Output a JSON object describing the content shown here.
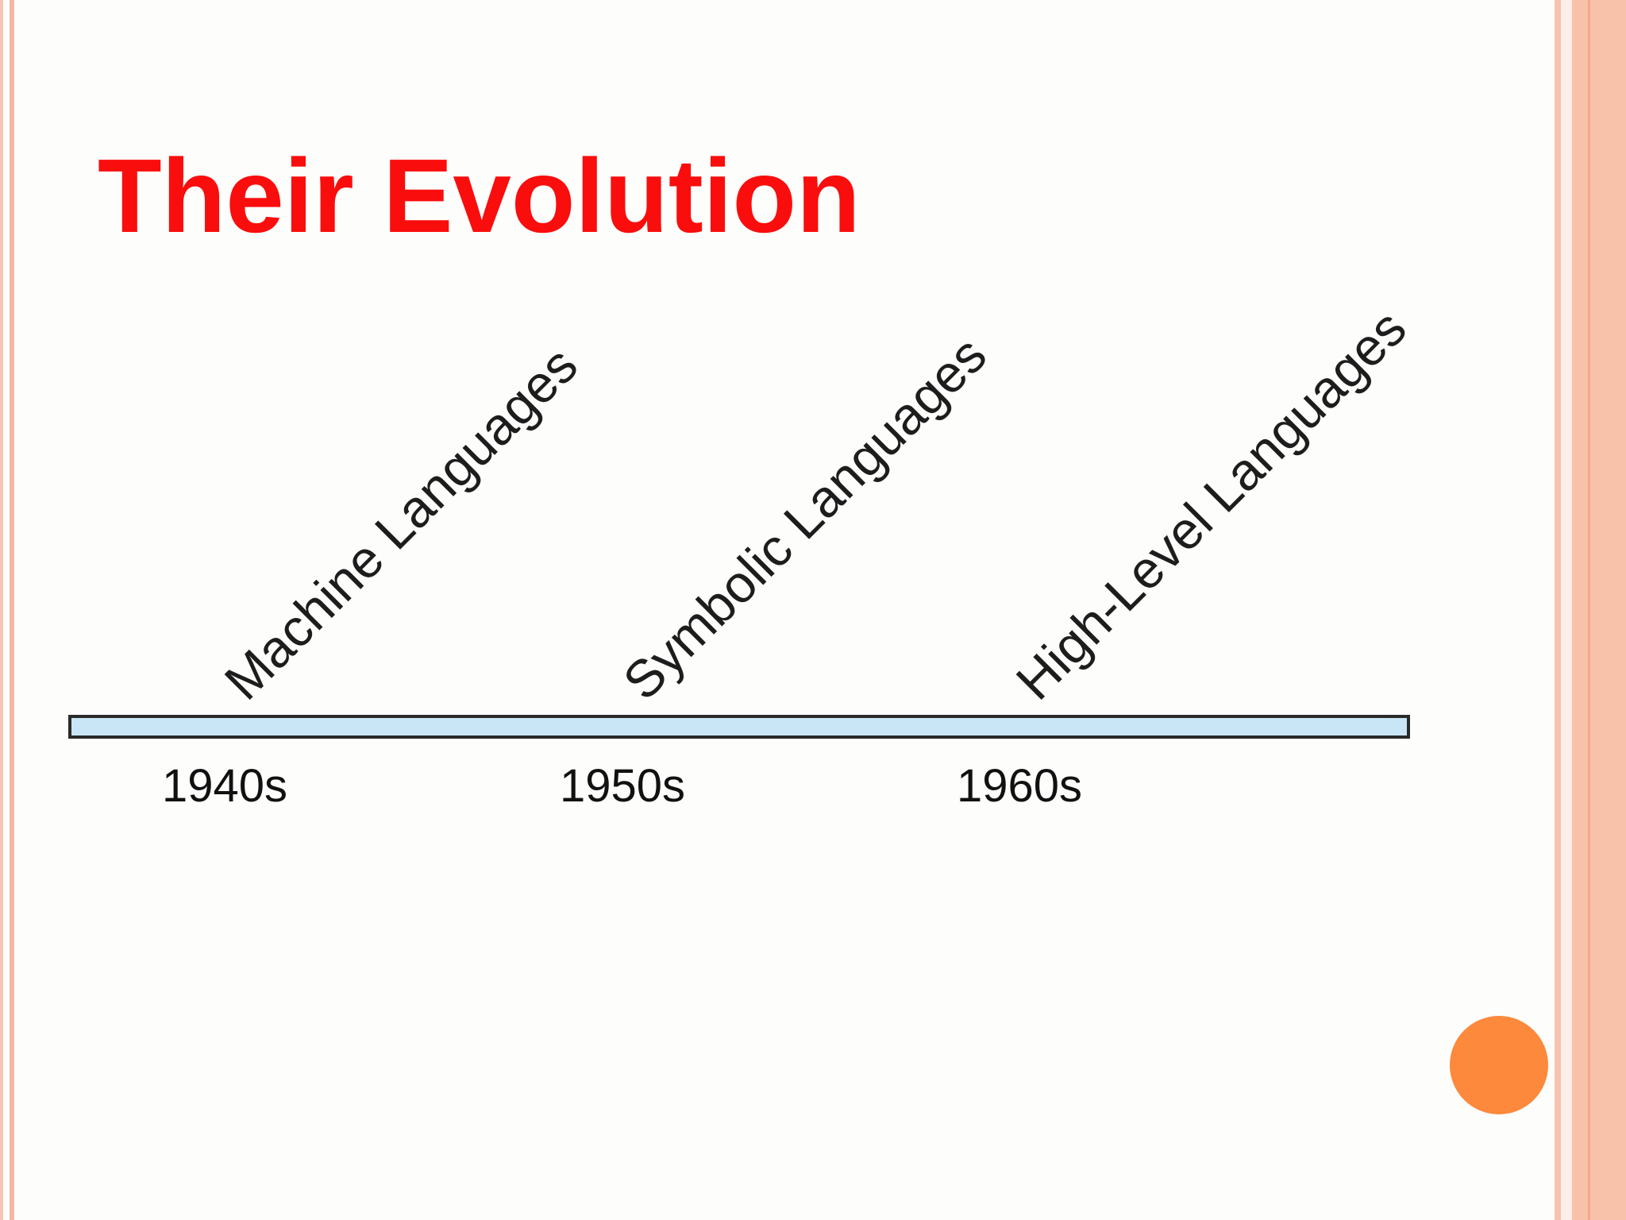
{
  "slide": {
    "title": "Their Evolution"
  },
  "timeline": {
    "eras": [
      {
        "label": "Machine Languages",
        "decade": "1940s"
      },
      {
        "label": "Symbolic Languages",
        "decade": "1950s"
      },
      {
        "label": "High-Level Languages",
        "decade": "1960s"
      }
    ]
  },
  "colors": {
    "title": "#fa0d0d",
    "bar_fill": "#c9e6f6",
    "accent_dot": "#fd893c",
    "border": "#f7c4b2"
  }
}
